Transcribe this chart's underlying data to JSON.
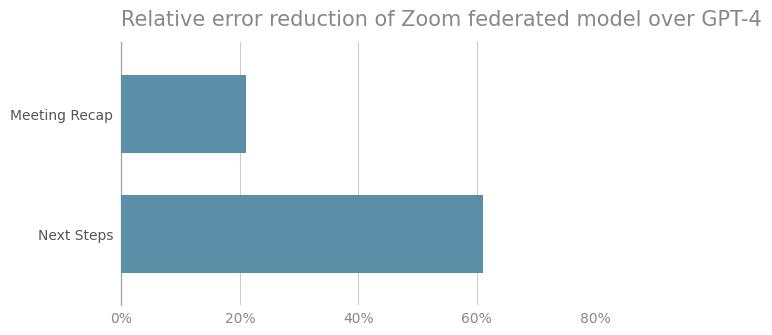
{
  "title": "Relative error reduction of Zoom federated model over GPT-4",
  "categories": [
    "Next Steps",
    "Meeting Recap"
  ],
  "values": [
    0.61,
    0.21
  ],
  "bar_color": "#5b8fa8",
  "xlim": [
    0,
    0.8
  ],
  "xticks": [
    0,
    0.2,
    0.4,
    0.6,
    0.8
  ],
  "xtick_labels": [
    "0%",
    "20%",
    "40%",
    "60%",
    "80%"
  ],
  "title_fontsize": 15,
  "title_color": "#888888",
  "tick_label_color": "#888888",
  "category_label_color": "#555555",
  "background_color": "#ffffff",
  "grid_color": "#cccccc",
  "bar_height": 0.65
}
